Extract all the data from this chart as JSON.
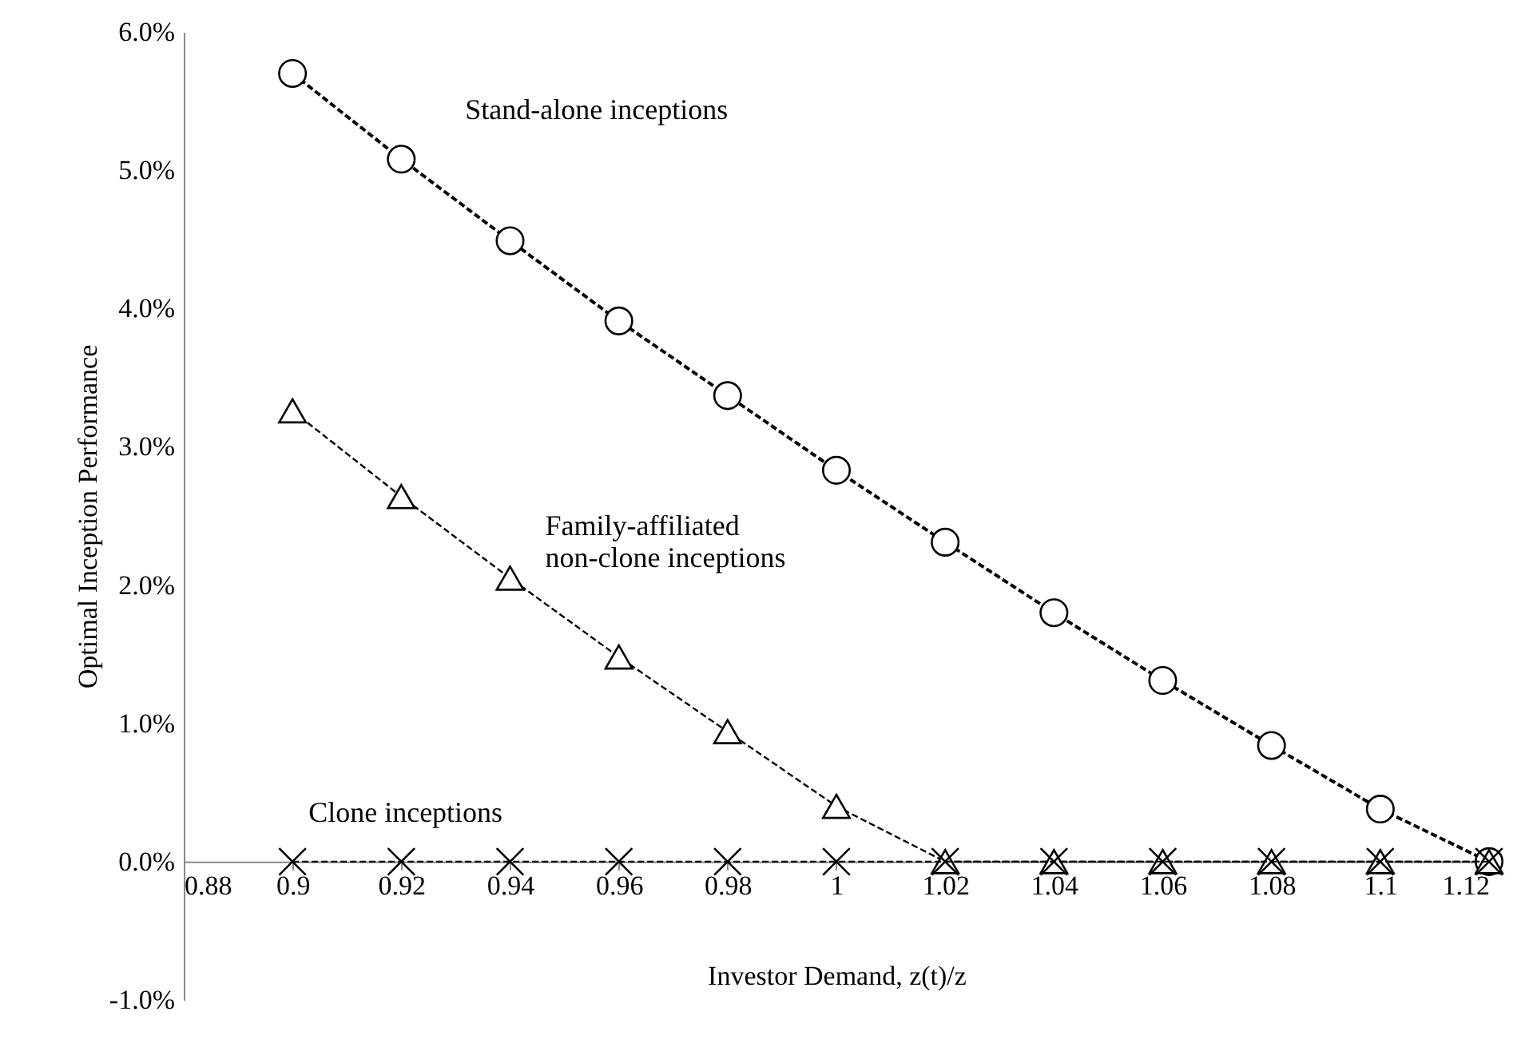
{
  "chart_data": {
    "type": "line",
    "xlabel": "Investor Demand, z(t)/z",
    "ylabel": "Optimal Inception Performance",
    "x": [
      0.9,
      0.92,
      0.94,
      0.96,
      0.98,
      1,
      1.02,
      1.04,
      1.06,
      1.08,
      1.1,
      1.12
    ],
    "series": [
      {
        "name": "Stand-alone inceptions",
        "color": "#000000",
        "marker": "circle",
        "line_style": "dashed",
        "values": [
          5.7,
          5.08,
          4.49,
          3.91,
          3.37,
          2.83,
          2.31,
          1.8,
          1.31,
          0.84,
          0.38,
          0
        ]
      },
      {
        "name": "Family-affiliated non-clone inceptions",
        "color": "#000000",
        "marker": "triangle",
        "line_style": "dashed",
        "values": [
          3.26,
          2.64,
          2.05,
          1.48,
          0.94,
          0.4,
          0,
          0,
          0,
          0,
          0,
          0
        ]
      },
      {
        "name": "Clone inceptions",
        "color": "#000000",
        "marker": "cross",
        "line_style": "dashed",
        "values": [
          0,
          0,
          0,
          0,
          0,
          0,
          0,
          0,
          0,
          0,
          0,
          0
        ]
      }
    ],
    "xlim": [
      0.88,
      1.12
    ],
    "xticks": [
      0.88,
      0.9,
      0.92,
      0.94,
      0.96,
      0.98,
      1,
      1.02,
      1.04,
      1.06,
      1.08,
      1.1,
      1.12
    ],
    "ylim": [
      -1,
      6
    ],
    "yticks": [
      {
        "value": -1,
        "label": "-1.0%"
      },
      {
        "value": 0,
        "label": "0.0%"
      },
      {
        "value": 1,
        "label": "1.0%"
      },
      {
        "value": 2,
        "label": "2.0%"
      },
      {
        "value": 3,
        "label": "3.0%"
      },
      {
        "value": 4,
        "label": "4.0%"
      },
      {
        "value": 5,
        "label": "5.0%"
      },
      {
        "value": 6,
        "label": "6.0%"
      }
    ],
    "grid": false
  }
}
